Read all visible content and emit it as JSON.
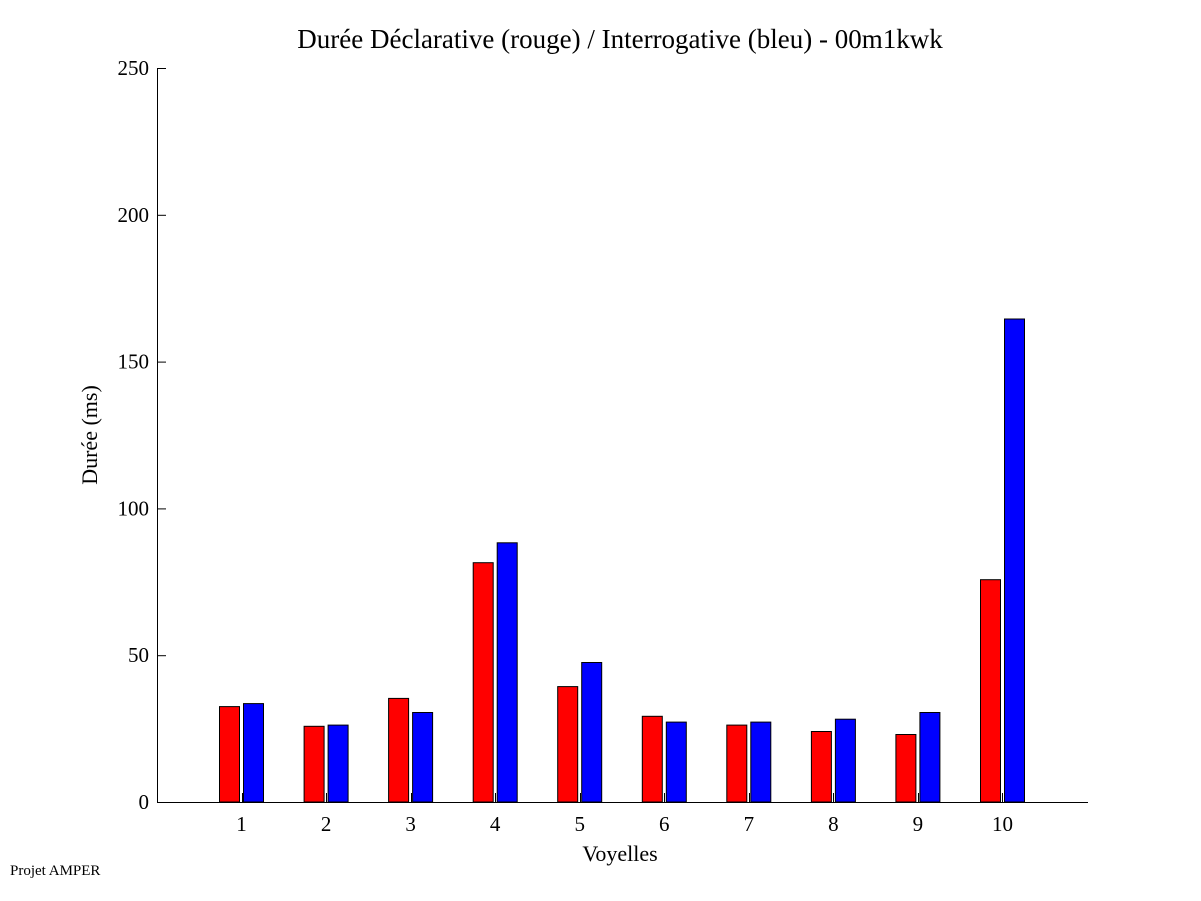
{
  "chart_data": {
    "type": "bar",
    "title": "Durée Déclarative (rouge) / Interrogative (bleu) - 00m1kwk",
    "xlabel": "Voyelles",
    "ylabel": "Durée (ms)",
    "categories": [
      "1",
      "2",
      "3",
      "4",
      "5",
      "6",
      "7",
      "8",
      "9",
      "10"
    ],
    "series": [
      {
        "color": "#ff0000",
        "values": [
          32.5,
          25.8,
          35.3,
          81.5,
          39.3,
          29.2,
          26.2,
          24.0,
          23.0,
          75.7
        ]
      },
      {
        "color": "#0000ff",
        "values": [
          33.5,
          26.2,
          30.5,
          88.3,
          47.5,
          27.2,
          27.2,
          28.2,
          30.5,
          164.5
        ]
      }
    ],
    "ylim": [
      0,
      250
    ],
    "yticks": [
      0,
      50,
      100,
      150,
      200,
      250
    ],
    "grid": false,
    "legend": "none"
  },
  "footer": {
    "credit": "Projet AMPER"
  }
}
